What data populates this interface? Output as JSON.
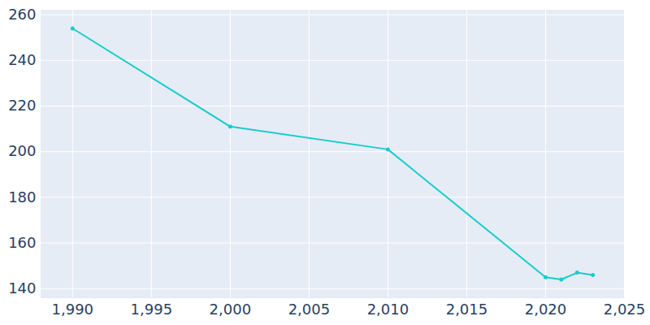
{
  "chart_data": {
    "type": "line",
    "x": [
      1990,
      2000,
      2010,
      2020,
      2021,
      2022,
      2023
    ],
    "values": [
      254,
      211,
      201,
      145,
      144,
      147,
      146
    ],
    "color": "#19cccc",
    "marker": "circle",
    "xlim": [
      1988,
      2025
    ],
    "xticks": [
      1990,
      1995,
      2000,
      2005,
      2010,
      2015,
      2020,
      2025
    ],
    "ylim": [
      136,
      262
    ],
    "yticks": [
      140,
      160,
      180,
      200,
      220,
      240,
      260
    ],
    "grid": true
  }
}
